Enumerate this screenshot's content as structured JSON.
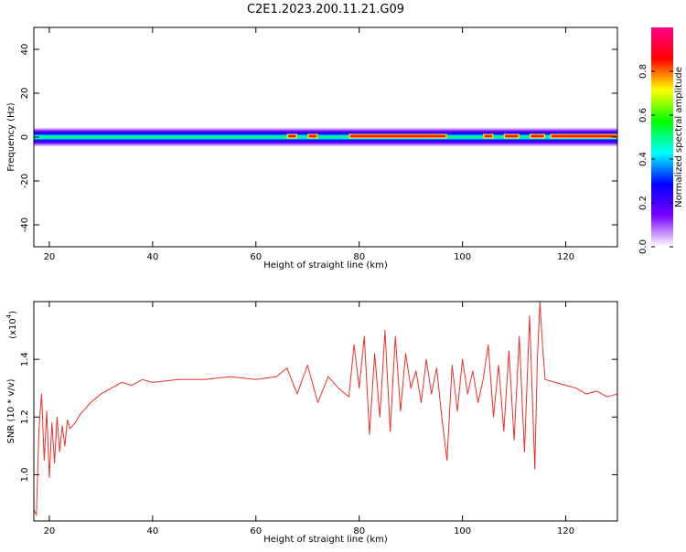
{
  "title": "C2E1.2023.200.11.21.G09",
  "chart_data": [
    {
      "type": "heatmap",
      "xlabel": "Height of straight line (km)",
      "ylabel": "Frequency (Hz)",
      "xlim": [
        17,
        130
      ],
      "ylim": [
        -50,
        50
      ],
      "x_ticks": [
        20,
        40,
        60,
        80,
        100,
        120
      ],
      "y_ticks": [
        -40,
        -20,
        0,
        20,
        40
      ],
      "colorbar": {
        "label": "Normalized spectral amplitude",
        "range": [
          0,
          1
        ],
        "ticks": [
          "0.0",
          "0.2",
          "0.4",
          "0.6",
          "0.8"
        ],
        "stops": [
          "#ffffff",
          "#7a00ff",
          "#0000ff",
          "#00ffff",
          "#00ff00",
          "#ffff00",
          "#ff0000",
          "#ff0088"
        ]
      },
      "band_center_hz": 0,
      "band_halfwidth_hz": 3,
      "peak_segments_km": [
        [
          66,
          68
        ],
        [
          70,
          72
        ],
        [
          78,
          97
        ],
        [
          104,
          106
        ],
        [
          108,
          111
        ],
        [
          113,
          116
        ],
        [
          117,
          130
        ]
      ]
    },
    {
      "type": "line",
      "xlabel": "Height of straight line (km)",
      "ylabel": "SNR (10 * v/v)",
      "y_scale_label": "(x10",
      "y_scale_exp": "4",
      "xlim": [
        17,
        130
      ],
      "ylim": [
        0.84,
        1.6
      ],
      "x_ticks": [
        20,
        40,
        60,
        80,
        100,
        120
      ],
      "y_ticks": [
        "1.0",
        "1.2",
        "1.4"
      ],
      "y_tick_values": [
        1.0,
        1.2,
        1.4
      ],
      "series_color": "#e8302b",
      "x": [
        17,
        17.5,
        18,
        18.5,
        19,
        19.5,
        20,
        20.5,
        21,
        21.5,
        22,
        22.5,
        23,
        23.5,
        24,
        25,
        26,
        27,
        28,
        30,
        32,
        34,
        36,
        38,
        40,
        45,
        50,
        55,
        60,
        64,
        66,
        68,
        70,
        72,
        74,
        76,
        78,
        79,
        80,
        81,
        82,
        83,
        84,
        85,
        86,
        87,
        88,
        89,
        90,
        91,
        92,
        93,
        94,
        95,
        96,
        97,
        98,
        99,
        100,
        101,
        102,
        103,
        104,
        105,
        106,
        107,
        108,
        109,
        110,
        111,
        112,
        113,
        114,
        114.5,
        115,
        115.5,
        116,
        118,
        120,
        122,
        124,
        126,
        128,
        130
      ],
      "y": [
        0.88,
        0.86,
        1.16,
        1.28,
        1.05,
        1.22,
        0.99,
        1.18,
        1.04,
        1.2,
        1.08,
        1.17,
        1.1,
        1.19,
        1.16,
        1.18,
        1.21,
        1.23,
        1.25,
        1.28,
        1.3,
        1.32,
        1.31,
        1.33,
        1.32,
        1.33,
        1.33,
        1.34,
        1.33,
        1.34,
        1.37,
        1.28,
        1.38,
        1.25,
        1.34,
        1.3,
        1.27,
        1.45,
        1.3,
        1.48,
        1.14,
        1.42,
        1.2,
        1.5,
        1.15,
        1.48,
        1.22,
        1.42,
        1.3,
        1.36,
        1.25,
        1.4,
        1.28,
        1.37,
        1.2,
        1.05,
        1.38,
        1.22,
        1.4,
        1.28,
        1.36,
        1.25,
        1.33,
        1.45,
        1.2,
        1.38,
        1.15,
        1.43,
        1.12,
        1.48,
        1.08,
        1.55,
        1.02,
        1.4,
        1.6,
        1.45,
        1.33,
        1.32,
        1.31,
        1.3,
        1.28,
        1.29,
        1.27,
        1.28
      ]
    }
  ]
}
